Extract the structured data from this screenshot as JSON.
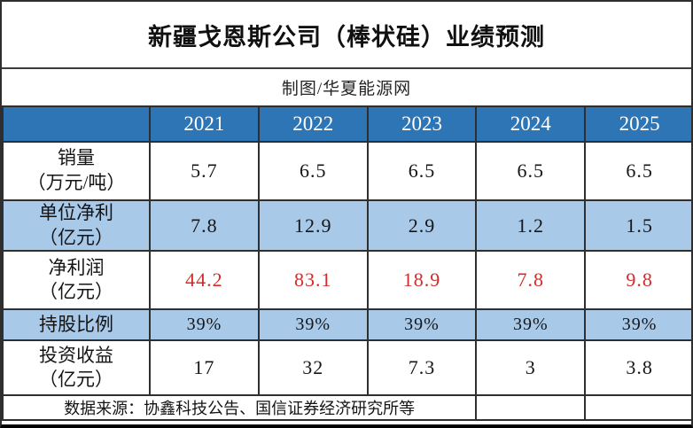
{
  "chart_data": {
    "type": "table",
    "title": "新疆戈恩斯公司（棒状硅）业绩预测",
    "subtitle": "制图/华夏能源网",
    "columns": [
      "2021",
      "2022",
      "2023",
      "2024",
      "2025"
    ],
    "rows": [
      {
        "label": "销量",
        "unit": "（万元/吨）",
        "values": [
          "5.7",
          "6.5",
          "6.5",
          "6.5",
          "6.5"
        ],
        "row_bg": "white",
        "value_color": "black"
      },
      {
        "label": "单位净利",
        "unit": "（亿元）",
        "values": [
          "7.8",
          "12.9",
          "2.9",
          "1.2",
          "1.5"
        ],
        "row_bg": "light-blue",
        "value_color": "black"
      },
      {
        "label": "净利润",
        "unit": "（亿元）",
        "values": [
          "44.2",
          "83.1",
          "18.9",
          "7.8",
          "9.8"
        ],
        "row_bg": "white",
        "value_color": "red"
      },
      {
        "label": "持股比例",
        "unit": "",
        "values": [
          "39%",
          "39%",
          "39%",
          "39%",
          "39%"
        ],
        "row_bg": "light-blue",
        "value_color": "black"
      },
      {
        "label": "投资收益",
        "unit": "（亿元）",
        "values": [
          "17",
          "32",
          "7.3",
          "3",
          "3.8"
        ],
        "row_bg": "white",
        "value_color": "black"
      }
    ],
    "source_note": "数据来源：协鑫科技公告、国信证券经济研究所等",
    "layout": {
      "grid": true,
      "header_row": true,
      "alternating_row_shading": true
    }
  },
  "colors": {
    "header_bg": "#2E75B6",
    "alt_row_bg": "#A9C9E9",
    "highlight_value": "#D42A2A",
    "border": "#2F2F2F",
    "header_text": "#FFFFFF"
  }
}
